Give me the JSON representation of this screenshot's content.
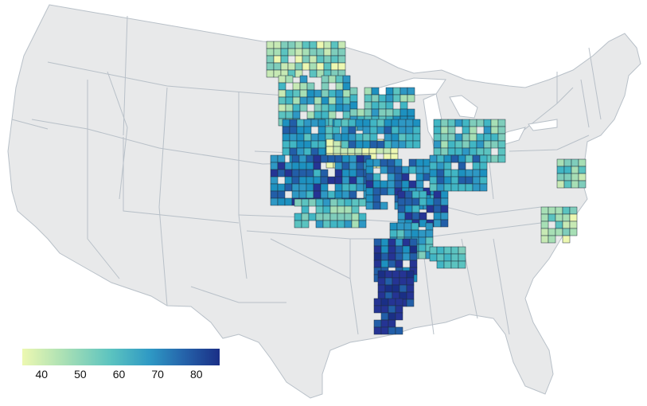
{
  "legend": {
    "min": 35,
    "max": 86,
    "ticks": [
      "40",
      "50",
      "60",
      "70",
      "80"
    ],
    "tick_values": [
      40,
      50,
      60,
      70,
      80
    ],
    "colors": [
      "#edf8b1",
      "#c7e9b4",
      "#7fcdbb",
      "#41b6c4",
      "#1d91c0",
      "#225ea8",
      "#253494",
      "#081d58"
    ]
  },
  "map": {
    "land_color": "#e8e9ea",
    "border_color": "#b8c0c8",
    "county_stroke": "#1f2d3a"
  }
}
